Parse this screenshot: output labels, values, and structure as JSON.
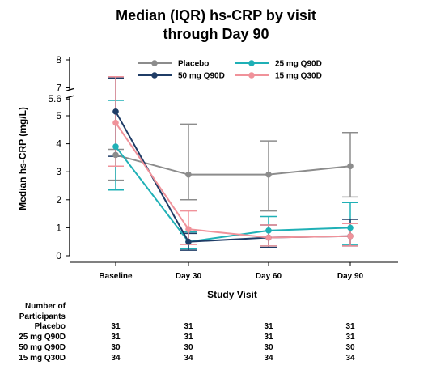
{
  "title_line1": "Median (IQR) hs-CRP by visit",
  "title_line2": "through Day 90",
  "chart_data": {
    "type": "line",
    "title": "Median (IQR) hs-CRP by visit through Day 90",
    "xlabel": "Study Visit",
    "ylabel": "Median hs-CRP (mg/L)",
    "categories": [
      "Baseline",
      "Day 30",
      "Day 60",
      "Day 90"
    ],
    "y_ticks_lower": [
      "0",
      "1",
      "2",
      "3",
      "4",
      "5",
      "5.6"
    ],
    "y_ticks_upper": [
      "7",
      "8"
    ],
    "axis_break": [
      5.6,
      7
    ],
    "ylim": [
      0,
      8
    ],
    "grid": false,
    "legend_position": "top",
    "series": [
      {
        "name": "Placebo",
        "color": "#8c8c8c",
        "marker": "circle",
        "values": [
          3.6,
          2.9,
          2.9,
          3.2
        ],
        "q1": [
          2.7,
          2.0,
          1.6,
          2.1
        ],
        "q3": [
          3.8,
          4.7,
          4.1,
          4.4
        ]
      },
      {
        "name": "25 mg Q90D",
        "color": "#1fb0b6",
        "marker": "circle",
        "values": [
          3.9,
          0.5,
          0.9,
          1.0
        ],
        "q1": [
          2.35,
          0.25,
          0.35,
          0.4
        ],
        "q3": [
          5.55,
          0.85,
          1.4,
          1.9
        ]
      },
      {
        "name": "50 mg Q90D",
        "color": "#1f3c66",
        "marker": "circle",
        "values": [
          5.15,
          0.5,
          0.65,
          0.7
        ],
        "q1": [
          3.55,
          0.2,
          0.3,
          0.35
        ],
        "q3": [
          7.35,
          0.8,
          1.1,
          1.3
        ]
      },
      {
        "name": "15 mg Q30D",
        "color": "#f0929a",
        "marker": "circle",
        "values": [
          4.75,
          0.95,
          0.65,
          0.7
        ],
        "q1": [
          3.2,
          0.4,
          0.35,
          0.35
        ],
        "q3": [
          7.4,
          1.6,
          1.1,
          1.15
        ]
      }
    ]
  },
  "participants_table": {
    "header_line1": "Number of",
    "header_line2": "Participants",
    "rows": [
      {
        "label": "Placebo",
        "values": [
          "31",
          "31",
          "31",
          "31"
        ]
      },
      {
        "label": "25 mg Q90D",
        "values": [
          "31",
          "31",
          "31",
          "31"
        ]
      },
      {
        "label": "50 mg Q90D",
        "values": [
          "30",
          "30",
          "30",
          "30"
        ]
      },
      {
        "label": "15 mg Q30D",
        "values": [
          "34",
          "34",
          "34",
          "34"
        ]
      }
    ]
  }
}
